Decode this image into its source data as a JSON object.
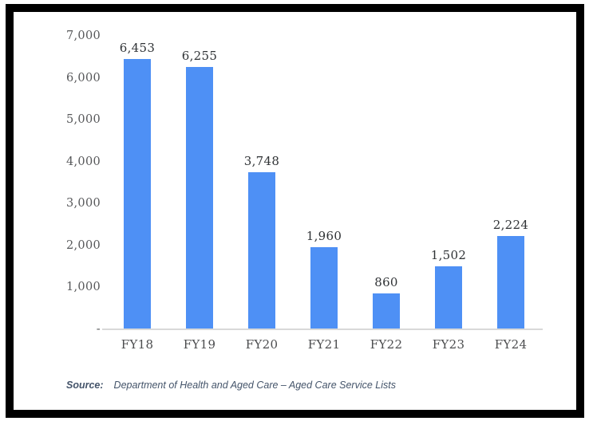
{
  "chart_data": {
    "type": "bar",
    "categories": [
      "FY18",
      "FY19",
      "FY20",
      "FY21",
      "FY22",
      "FY23",
      "FY24"
    ],
    "values": [
      6453,
      6255,
      3748,
      1960,
      860,
      1502,
      2224
    ],
    "value_labels": [
      "6,453",
      "6,255",
      "3,748",
      "1,960",
      "860",
      "1,502",
      "2,224"
    ],
    "y_tick_labels": [
      "7,000",
      "6,000",
      "5,000",
      "4,000",
      "3,000",
      "2,000",
      "1,000",
      "-"
    ],
    "title": "",
    "xlabel": "",
    "ylabel": "",
    "ylim": [
      0,
      7000
    ],
    "grid": false,
    "legend": false,
    "data_labels": true
  },
  "colors": {
    "bar": "#4e90f5",
    "value_label": "#2f3235",
    "tick_label": "#57585a",
    "axis_line": "#d9d9d9",
    "source_text": "#44546a",
    "frame_border": "#000000"
  },
  "source": {
    "label": "Source:",
    "text": "Department of Health and Aged Care – Aged Care Service Lists"
  }
}
